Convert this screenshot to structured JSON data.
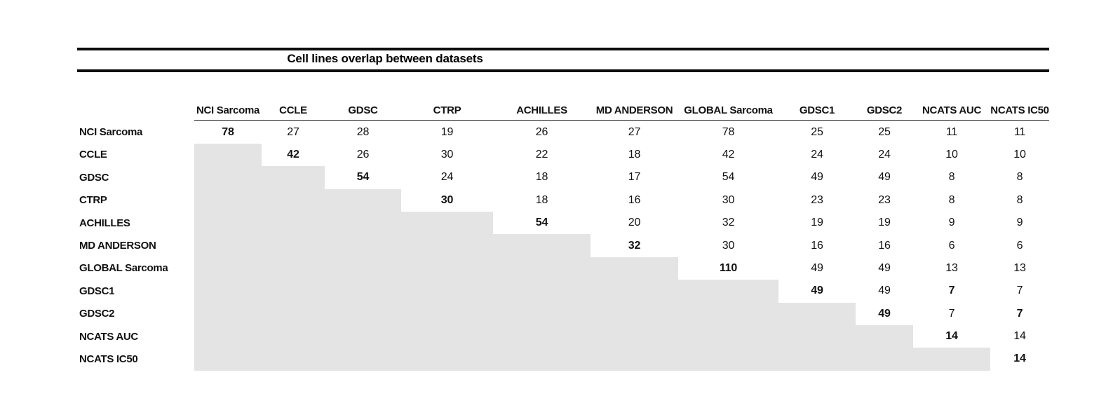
{
  "title": "Cell lines overlap between datasets",
  "columns": [
    "NCI Sarcoma",
    "CCLE",
    "GDSC",
    "CTRP",
    "ACHILLES",
    "MD ANDERSON",
    "GLOBAL Sarcoma",
    "GDSC1",
    "GDSC2",
    "NCATS AUC",
    "NCATS IC50"
  ],
  "chart_data": {
    "type": "table",
    "title": "Cell lines overlap between datasets",
    "row_labels": [
      "NCI Sarcoma",
      "CCLE",
      "GDSC",
      "CTRP",
      "ACHILLES",
      "MD ANDERSON",
      "GLOBAL Sarcoma",
      "GDSC1",
      "GDSC2",
      "NCATS AUC",
      "NCATS IC50"
    ],
    "col_labels": [
      "NCI Sarcoma",
      "CCLE",
      "GDSC",
      "CTRP",
      "ACHILLES",
      "MD ANDERSON",
      "GLOBAL Sarcoma",
      "GDSC1",
      "GDSC2",
      "NCATS AUC",
      "NCATS IC50"
    ],
    "cells": [
      [
        78,
        27,
        28,
        19,
        26,
        27,
        78,
        25,
        25,
        11,
        11
      ],
      [
        null,
        42,
        26,
        30,
        22,
        18,
        42,
        24,
        24,
        10,
        10
      ],
      [
        null,
        null,
        54,
        24,
        18,
        17,
        54,
        49,
        49,
        8,
        8
      ],
      [
        null,
        null,
        null,
        30,
        18,
        16,
        30,
        23,
        23,
        8,
        8
      ],
      [
        null,
        null,
        null,
        null,
        54,
        20,
        32,
        19,
        19,
        9,
        9
      ],
      [
        null,
        null,
        null,
        null,
        null,
        32,
        30,
        16,
        16,
        6,
        6
      ],
      [
        null,
        null,
        null,
        null,
        null,
        null,
        110,
        49,
        49,
        13,
        13
      ],
      [
        null,
        null,
        null,
        null,
        null,
        null,
        null,
        49,
        49,
        7,
        7
      ],
      [
        null,
        null,
        null,
        null,
        null,
        null,
        null,
        null,
        49,
        7,
        7
      ],
      [
        null,
        null,
        null,
        null,
        null,
        null,
        null,
        null,
        null,
        14,
        14
      ],
      [
        null,
        null,
        null,
        null,
        null,
        null,
        null,
        null,
        null,
        null,
        14
      ]
    ],
    "bold_cells_extra": [
      [
        7,
        9
      ],
      [
        8,
        10
      ]
    ],
    "diagonal_bold": true,
    "shading": "lower-triangle"
  },
  "colors": {
    "shade": "#e5e4e4",
    "rule": "#0d0d0d",
    "header_underline": "#1a1a1a"
  }
}
